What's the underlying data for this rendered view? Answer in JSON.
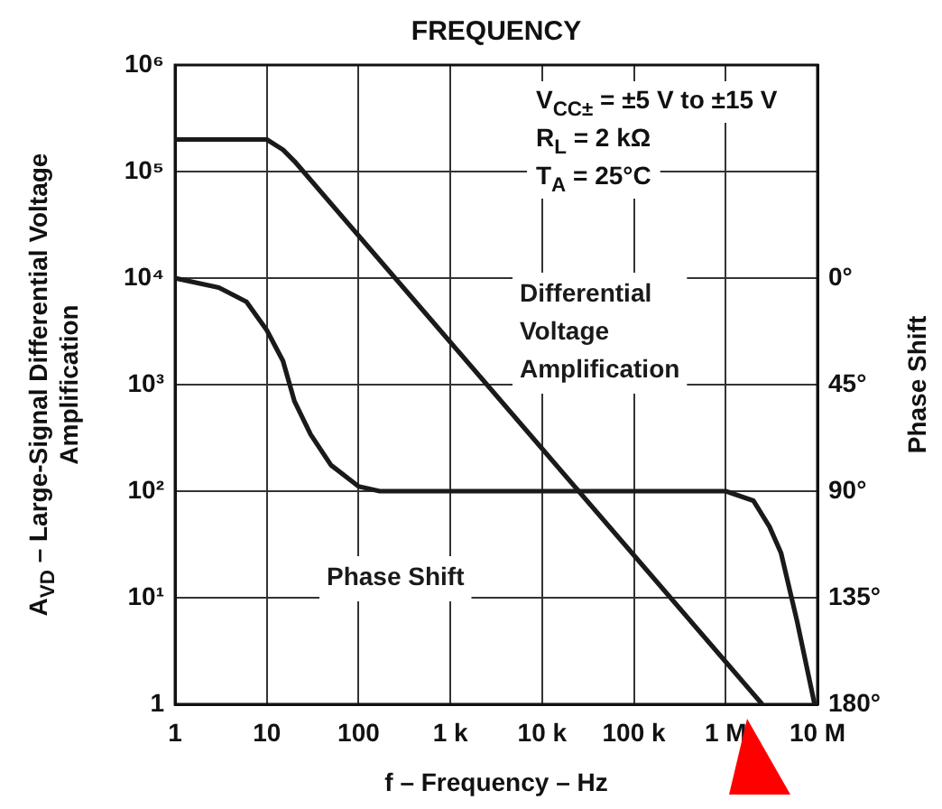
{
  "chart_data": {
    "type": "line",
    "title": "FREQUENCY",
    "xlabel": "f – Frequency – Hz",
    "ylabel": "A$_{VD}$ – Large-Signal Differential Voltage Amplification",
    "y2label": "Phase Shift",
    "log": "xy",
    "grid": true,
    "legend": false,
    "marker": "none",
    "line_style": "solid",
    "xlim": [
      1,
      10000000
    ],
    "xticks": [
      1,
      10,
      100,
      {
        "value": 1000,
        "label": "1 k"
      },
      {
        "value": 10000,
        "label": "10 k"
      },
      {
        "value": 100000,
        "label": "100 k"
      },
      {
        "value": 1000000,
        "label": "1 M"
      },
      {
        "value": 10000000,
        "label": "10 M"
      }
    ],
    "ylim": [
      1,
      1000000
    ],
    "yticks": [
      1,
      {
        "value": 10,
        "label": "10¹"
      },
      {
        "value": 100,
        "label": "10²"
      },
      {
        "value": 1000,
        "label": "10³"
      },
      {
        "value": 10000,
        "label": "10⁴"
      },
      {
        "value": 100000,
        "label": "10⁵"
      },
      {
        "value": 1000000,
        "label": "10⁶"
      }
    ],
    "y2lim": [
      180,
      -90
    ],
    "y2ticks": [
      {
        "value": 0,
        "label": "0°"
      },
      {
        "value": 45,
        "label": "45°"
      },
      {
        "value": 90,
        "label": "90°"
      },
      {
        "value": 135,
        "label": "135°"
      },
      {
        "value": 180,
        "label": "180°"
      }
    ],
    "series": [
      {
        "name": "Differential Voltage Amplification",
        "color": "#1a1a1a",
        "x": [
          1,
          10,
          15,
          20,
          100,
          1000,
          10000,
          100000,
          1000000,
          2500000
        ],
        "values": [
          200000,
          200000,
          160000,
          125000,
          25000,
          2500,
          250,
          25,
          2.5,
          1
        ]
      },
      {
        "name": "Phase Shift",
        "color": "#1a1a1a",
        "axis": "y2",
        "x": [
          1,
          3,
          6,
          10,
          15,
          20,
          30,
          50,
          100,
          170,
          1000000,
          2000000,
          3000000,
          4000000,
          6000000,
          9300000,
          10000000
        ],
        "values": [
          0,
          4,
          10,
          22,
          35,
          52,
          66,
          79,
          88,
          90,
          90,
          94,
          105,
          116,
          145,
          180,
          180
        ]
      }
    ],
    "annotations": [
      "V$_{CC±}$ = ±5 V to ±15 V",
      "R$_{L}$ = 2 kΩ",
      "T$_{A}$ = 25°C"
    ]
  }
}
